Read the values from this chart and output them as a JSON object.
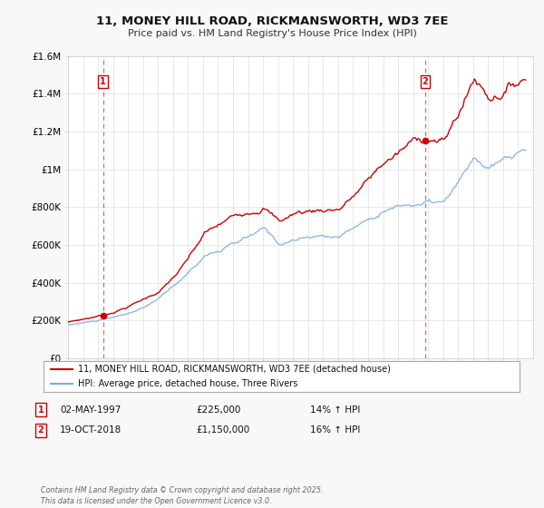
{
  "title1": "11, MONEY HILL ROAD, RICKMANSWORTH, WD3 7EE",
  "title2": "Price paid vs. HM Land Registry's House Price Index (HPI)",
  "ylim": [
    0,
    1600000
  ],
  "yticks": [
    0,
    200000,
    400000,
    600000,
    800000,
    1000000,
    1200000,
    1400000,
    1600000
  ],
  "ytick_labels": [
    "£0",
    "£200K",
    "£400K",
    "£600K",
    "£800K",
    "£1M",
    "£1.2M",
    "£1.4M",
    "£1.6M"
  ],
  "background_color": "#f8f8f8",
  "plot_bg_color": "#ffffff",
  "grid_color": "#dddddd",
  "line1_color": "#cc0000",
  "line2_color": "#7aace0",
  "sale1_date_x": 1997.33,
  "sale1_price": 225000,
  "sale2_date_x": 2018.8,
  "sale2_price": 1150000,
  "vline_color": "#cc0000",
  "legend_line1": "11, MONEY HILL ROAD, RICKMANSWORTH, WD3 7EE (detached house)",
  "legend_line2": "HPI: Average price, detached house, Three Rivers",
  "note1_label": "1",
  "note1_date": "02-MAY-1997",
  "note1_price": "£225,000",
  "note1_hpi": "14% ↑ HPI",
  "note2_label": "2",
  "note2_date": "19-OCT-2018",
  "note2_price": "£1,150,000",
  "note2_hpi": "16% ↑ HPI",
  "footer": "Contains HM Land Registry data © Crown copyright and database right 2025.\nThis data is licensed under the Open Government Licence v3.0.",
  "xmin": 1995.0,
  "xmax": 2026.0
}
